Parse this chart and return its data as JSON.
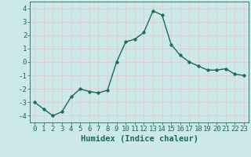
{
  "x": [
    0,
    1,
    2,
    3,
    4,
    5,
    6,
    7,
    8,
    9,
    10,
    11,
    12,
    13,
    14,
    15,
    16,
    17,
    18,
    19,
    20,
    21,
    22,
    23
  ],
  "y": [
    -3.0,
    -3.5,
    -4.0,
    -3.7,
    -2.6,
    -2.0,
    -2.2,
    -2.3,
    -2.1,
    0.0,
    1.5,
    1.7,
    2.2,
    3.8,
    3.5,
    1.3,
    0.5,
    0.0,
    -0.3,
    -0.6,
    -0.6,
    -0.5,
    -0.9,
    -1.0
  ],
  "line_color": "#1a6b5a",
  "marker": "o",
  "markersize": 2.5,
  "linewidth": 1.0,
  "xlabel": "Humidex (Indice chaleur)",
  "xlim": [
    -0.5,
    23.5
  ],
  "ylim": [
    -4.5,
    4.5
  ],
  "yticks": [
    -4,
    -3,
    -2,
    -1,
    0,
    1,
    2,
    3,
    4
  ],
  "xticks": [
    0,
    1,
    2,
    3,
    4,
    5,
    6,
    7,
    8,
    9,
    10,
    11,
    12,
    13,
    14,
    15,
    16,
    17,
    18,
    19,
    20,
    21,
    22,
    23
  ],
  "bg_color": "#cce8e8",
  "grid_color": "#e8c8c8",
  "tick_color": "#1a6b5a",
  "xlabel_fontsize": 7.5,
  "tick_fontsize": 6.5
}
